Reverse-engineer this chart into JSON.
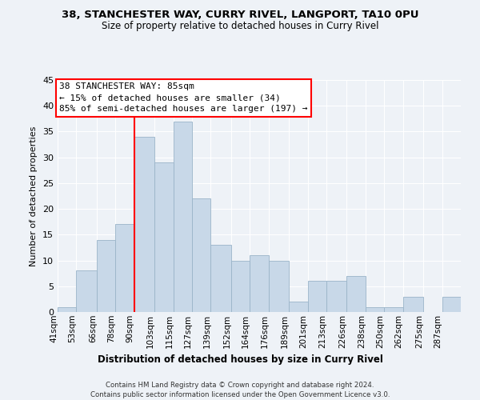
{
  "title": "38, STANCHESTER WAY, CURRY RIVEL, LANGPORT, TA10 0PU",
  "subtitle": "Size of property relative to detached houses in Curry Rivel",
  "xlabel": "Distribution of detached houses by size in Curry Rivel",
  "ylabel": "Number of detached properties",
  "bin_labels": [
    "41sqm",
    "53sqm",
    "66sqm",
    "78sqm",
    "90sqm",
    "103sqm",
    "115sqm",
    "127sqm",
    "139sqm",
    "152sqm",
    "164sqm",
    "176sqm",
    "189sqm",
    "201sqm",
    "213sqm",
    "226sqm",
    "238sqm",
    "250sqm",
    "262sqm",
    "275sqm",
    "287sqm"
  ],
  "bin_edges": [
    41,
    53,
    66,
    78,
    90,
    103,
    115,
    127,
    139,
    152,
    164,
    176,
    189,
    201,
    213,
    226,
    238,
    250,
    262,
    275,
    287,
    299
  ],
  "counts": [
    1,
    8,
    14,
    17,
    34,
    29,
    37,
    22,
    13,
    10,
    11,
    10,
    2,
    6,
    6,
    7,
    1,
    1,
    3,
    0,
    3
  ],
  "bar_color": "#c8d8e8",
  "bar_edge_color": "#9ab4c8",
  "vline_x": 90,
  "vline_color": "red",
  "annotation_title": "38 STANCHESTER WAY: 85sqm",
  "annotation_line1": "← 15% of detached houses are smaller (34)",
  "annotation_line2": "85% of semi-detached houses are larger (197) →",
  "annotation_box_color": "white",
  "annotation_box_edge": "red",
  "ylim": [
    0,
    45
  ],
  "yticks": [
    0,
    5,
    10,
    15,
    20,
    25,
    30,
    35,
    40,
    45
  ],
  "footer1": "Contains HM Land Registry data © Crown copyright and database right 2024.",
  "footer2": "Contains public sector information licensed under the Open Government Licence v3.0.",
  "background_color": "#eef2f7"
}
